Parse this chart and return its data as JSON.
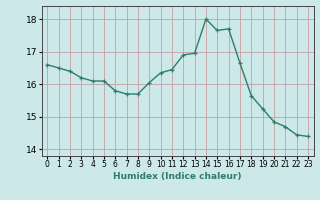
{
  "x": [
    0,
    1,
    2,
    3,
    4,
    5,
    6,
    7,
    8,
    9,
    10,
    11,
    12,
    13,
    14,
    15,
    16,
    17,
    18,
    19,
    20,
    21,
    22,
    23
  ],
  "y": [
    16.6,
    16.5,
    16.4,
    16.2,
    16.1,
    16.1,
    15.8,
    15.7,
    15.7,
    16.05,
    16.35,
    16.45,
    16.9,
    16.95,
    18.0,
    17.65,
    17.7,
    16.65,
    15.65,
    15.25,
    14.85,
    14.7,
    14.45,
    14.4
  ],
  "xlabel": "Humidex (Indice chaleur)",
  "xlim": [
    -0.5,
    23.5
  ],
  "ylim": [
    13.8,
    18.4
  ],
  "yticks": [
    14,
    15,
    16,
    17,
    18
  ],
  "xticks": [
    0,
    1,
    2,
    3,
    4,
    5,
    6,
    7,
    8,
    9,
    10,
    11,
    12,
    13,
    14,
    15,
    16,
    17,
    18,
    19,
    20,
    21,
    22,
    23
  ],
  "line_color": "#2e7d6e",
  "marker": "+",
  "bg_color": "#cce8e8",
  "grid_color_v": "#c4a0a0",
  "grid_color_h": "#c4a0a0",
  "axes_bg": "#cce8e8"
}
